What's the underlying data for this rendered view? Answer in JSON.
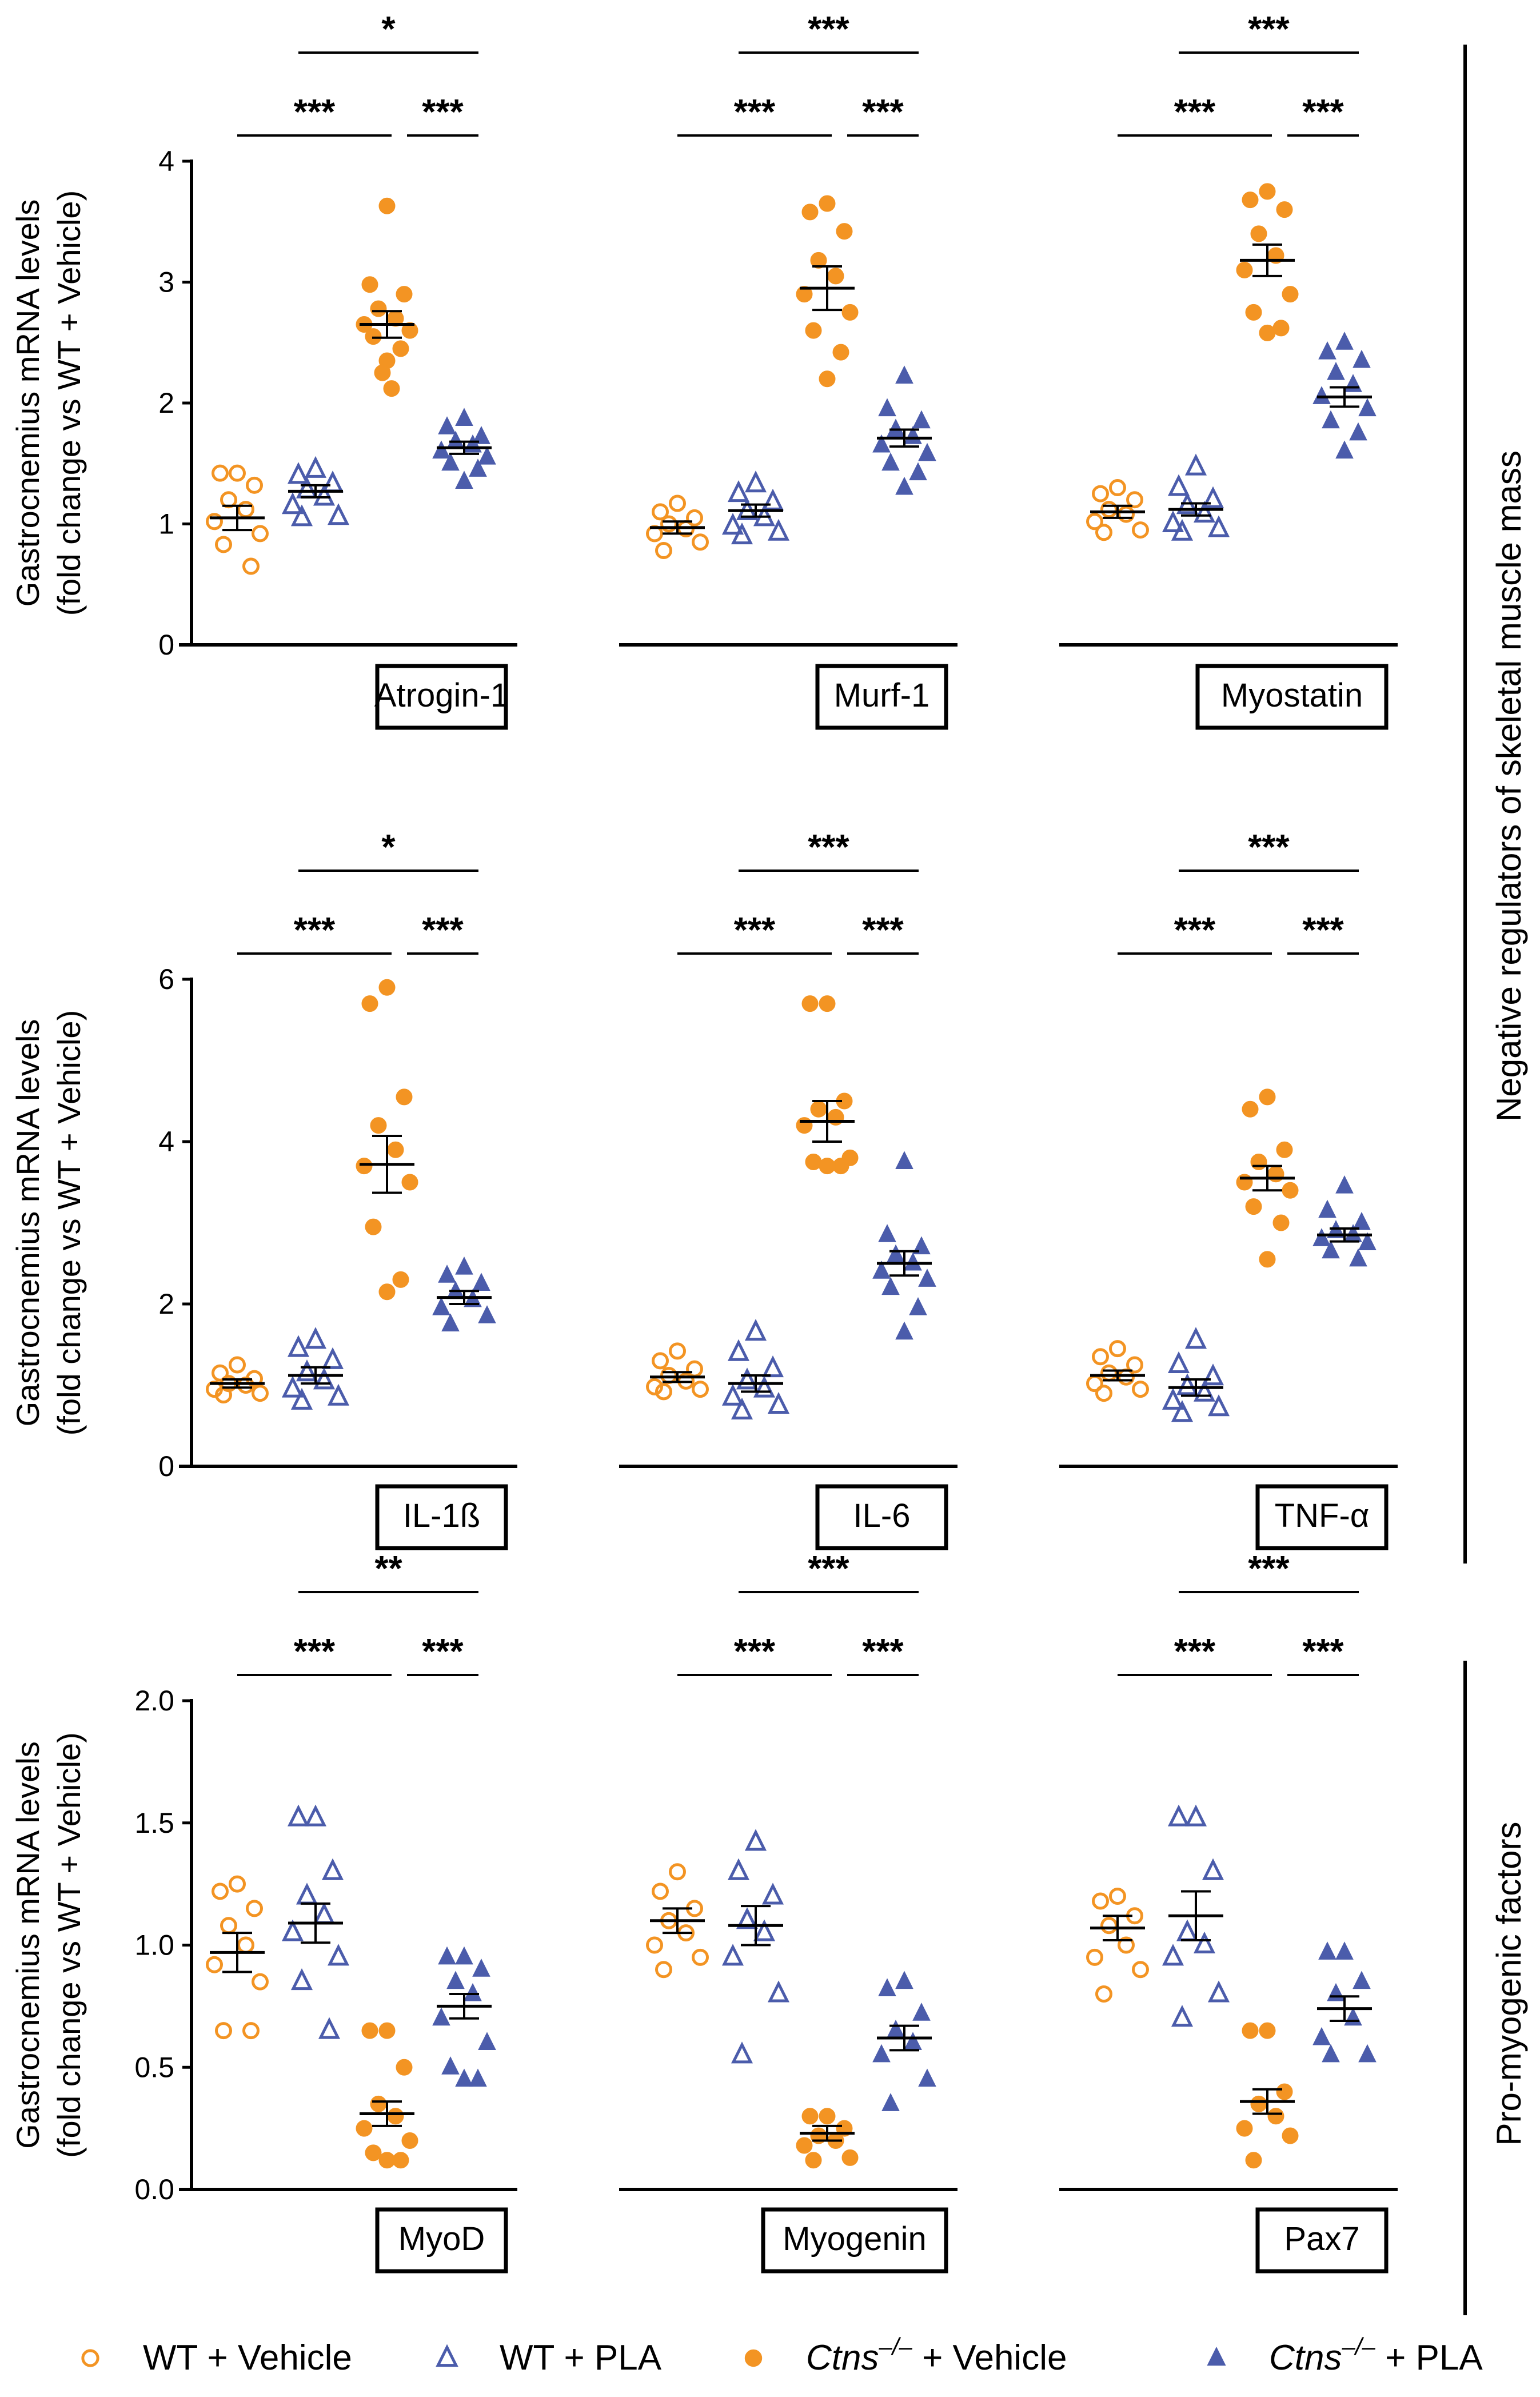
{
  "colors": {
    "orange": "#F39423",
    "blue": "#4B5CAB",
    "black": "#000000"
  },
  "y_axis_title_line1": "Gastrocnemius mRNA levels",
  "y_axis_title_line2": "(fold change vs WT + Vehicle)",
  "side_labels": [
    "Negative regulators of skeletal muscle mass",
    "Pro-myogenic factors"
  ],
  "legend": [
    {
      "prefix": "",
      "italic": "",
      "label": "WT + Vehicle",
      "marker": "open-circle",
      "color": "#F39423"
    },
    {
      "prefix": "",
      "italic": "",
      "label": "WT + PLA",
      "marker": "open-triangle",
      "color": "#4B5CAB"
    },
    {
      "prefix": "",
      "italic": "Ctns",
      "sup": "–/–",
      "label": " + Vehicle",
      "marker": "filled-circle",
      "color": "#F39423"
    },
    {
      "prefix": "",
      "italic": "Ctns",
      "sup": "–/–",
      "label": " + PLA",
      "marker": "filled-triangle",
      "color": "#4B5CAB"
    }
  ],
  "chart_data": [
    {
      "type": "scatter",
      "title": "Atrogin-1",
      "row": 0,
      "ylim": [
        0,
        4
      ],
      "yticks": [
        0,
        1,
        2,
        3,
        4
      ],
      "ytick_labels": [
        "0",
        "1",
        "2",
        "3",
        "4"
      ],
      "groups": [
        {
          "name": "WT + Vehicle",
          "mean": 1.05,
          "sem": 0.1,
          "values": [
            1.42,
            1.42,
            1.32,
            1.2,
            1.12,
            1.02,
            0.92,
            0.83,
            0.65
          ]
        },
        {
          "name": "WT + PLA",
          "mean": 1.27,
          "sem": 0.05,
          "values": [
            1.45,
            1.4,
            1.33,
            1.28,
            1.22,
            1.15,
            1.06,
            1.05
          ]
        },
        {
          "name": "Ctns–/– + Vehicle",
          "mean": 2.65,
          "sem": 0.11,
          "values": [
            3.63,
            2.98,
            2.9,
            2.78,
            2.7,
            2.65,
            2.6,
            2.55,
            2.45,
            2.35,
            2.25,
            2.12
          ]
        },
        {
          "name": "Ctns–/– + PLA",
          "mean": 1.63,
          "sem": 0.05,
          "values": [
            1.87,
            1.8,
            1.72,
            1.68,
            1.65,
            1.6,
            1.55,
            1.5,
            1.45,
            1.35
          ]
        }
      ],
      "significance": [
        {
          "from": 0,
          "to": 2,
          "label": "***",
          "level": 0
        },
        {
          "from": 2,
          "to": 3,
          "label": "***",
          "level": 0
        },
        {
          "from": 1,
          "to": 3,
          "label": "*",
          "level": 1
        }
      ]
    },
    {
      "type": "scatter",
      "title": "Murf-1",
      "row": 0,
      "ylim": [
        0,
        4
      ],
      "yticks": [],
      "groups": [
        {
          "name": "WT + Vehicle",
          "mean": 0.97,
          "sem": 0.05,
          "values": [
            1.17,
            1.1,
            1.05,
            1.0,
            0.96,
            0.92,
            0.85,
            0.78
          ]
        },
        {
          "name": "WT + PLA",
          "mean": 1.11,
          "sem": 0.05,
          "values": [
            1.33,
            1.25,
            1.18,
            1.1,
            1.05,
            0.98,
            0.93,
            0.9
          ]
        },
        {
          "name": "Ctns–/– + Vehicle",
          "mean": 2.95,
          "sem": 0.18,
          "values": [
            3.65,
            3.58,
            3.42,
            3.18,
            3.05,
            2.9,
            2.75,
            2.6,
            2.42,
            2.2
          ]
        },
        {
          "name": "Ctns–/– + PLA",
          "mean": 1.71,
          "sem": 0.07,
          "values": [
            2.22,
            1.95,
            1.85,
            1.78,
            1.72,
            1.65,
            1.58,
            1.5,
            1.42,
            1.3
          ]
        }
      ],
      "significance": [
        {
          "from": 0,
          "to": 2,
          "label": "***",
          "level": 0
        },
        {
          "from": 2,
          "to": 3,
          "label": "***",
          "level": 0
        },
        {
          "from": 1,
          "to": 3,
          "label": "***",
          "level": 1
        }
      ]
    },
    {
      "type": "scatter",
      "title": "Myostatin",
      "row": 0,
      "ylim": [
        0,
        4
      ],
      "yticks": [],
      "groups": [
        {
          "name": "WT + Vehicle",
          "mean": 1.1,
          "sem": 0.05,
          "values": [
            1.3,
            1.25,
            1.2,
            1.12,
            1.08,
            1.02,
            0.95,
            0.93
          ]
        },
        {
          "name": "WT + PLA",
          "mean": 1.12,
          "sem": 0.05,
          "values": [
            1.47,
            1.3,
            1.2,
            1.15,
            1.08,
            1.0,
            0.96,
            0.93
          ]
        },
        {
          "name": "Ctns–/– + Vehicle",
          "mean": 3.18,
          "sem": 0.13,
          "values": [
            3.75,
            3.68,
            3.6,
            3.4,
            3.22,
            3.1,
            2.9,
            2.75,
            2.62,
            2.58
          ]
        },
        {
          "name": "Ctns–/– + PLA",
          "mean": 2.05,
          "sem": 0.08,
          "values": [
            2.5,
            2.42,
            2.35,
            2.25,
            2.15,
            2.05,
            1.95,
            1.85,
            1.75,
            1.6
          ]
        }
      ],
      "significance": [
        {
          "from": 0,
          "to": 2,
          "label": "***",
          "level": 0
        },
        {
          "from": 2,
          "to": 3,
          "label": "***",
          "level": 0
        },
        {
          "from": 1,
          "to": 3,
          "label": "***",
          "level": 1
        }
      ]
    },
    {
      "type": "scatter",
      "title": "IL-1ß",
      "row": 1,
      "ylim": [
        0,
        6
      ],
      "yticks": [
        0,
        2,
        4,
        6
      ],
      "ytick_labels": [
        "0",
        "2",
        "4",
        "6"
      ],
      "groups": [
        {
          "name": "WT + Vehicle",
          "mean": 1.02,
          "sem": 0.05,
          "values": [
            1.25,
            1.15,
            1.08,
            1.02,
            1.0,
            0.95,
            0.9,
            0.88
          ]
        },
        {
          "name": "WT + PLA",
          "mean": 1.12,
          "sem": 0.1,
          "values": [
            1.55,
            1.45,
            1.3,
            1.15,
            1.05,
            0.95,
            0.85,
            0.8
          ]
        },
        {
          "name": "Ctns–/– + Vehicle",
          "mean": 3.72,
          "sem": 0.35,
          "values": [
            5.9,
            5.7,
            4.55,
            4.2,
            3.9,
            3.7,
            3.5,
            2.95,
            2.3,
            2.15
          ]
        },
        {
          "name": "Ctns–/– + PLA",
          "mean": 2.08,
          "sem": 0.08,
          "values": [
            2.45,
            2.35,
            2.25,
            2.15,
            2.05,
            1.95,
            1.85,
            1.75
          ]
        }
      ],
      "significance": [
        {
          "from": 0,
          "to": 2,
          "label": "***",
          "level": 0
        },
        {
          "from": 2,
          "to": 3,
          "label": "***",
          "level": 0
        },
        {
          "from": 1,
          "to": 3,
          "label": "*",
          "level": 1
        }
      ]
    },
    {
      "type": "scatter",
      "title": "IL-6",
      "row": 1,
      "ylim": [
        0,
        6
      ],
      "yticks": [],
      "groups": [
        {
          "name": "WT + Vehicle",
          "mean": 1.1,
          "sem": 0.06,
          "values": [
            1.42,
            1.3,
            1.2,
            1.12,
            1.05,
            0.98,
            0.95,
            0.92
          ]
        },
        {
          "name": "WT + PLA",
          "mean": 1.02,
          "sem": 0.1,
          "values": [
            1.65,
            1.4,
            1.2,
            1.05,
            0.95,
            0.85,
            0.75,
            0.68
          ]
        },
        {
          "name": "Ctns–/– + Vehicle",
          "mean": 4.25,
          "sem": 0.25,
          "values": [
            5.7,
            5.7,
            4.5,
            4.4,
            4.3,
            4.2,
            3.8,
            3.75,
            3.7,
            3.7
          ]
        },
        {
          "name": "Ctns–/– + PLA",
          "mean": 2.5,
          "sem": 0.15,
          "values": [
            3.75,
            2.85,
            2.7,
            2.6,
            2.5,
            2.4,
            2.3,
            2.2,
            1.95,
            1.65
          ]
        }
      ],
      "significance": [
        {
          "from": 0,
          "to": 2,
          "label": "***",
          "level": 0
        },
        {
          "from": 2,
          "to": 3,
          "label": "***",
          "level": 0
        },
        {
          "from": 1,
          "to": 3,
          "label": "***",
          "level": 1
        }
      ]
    },
    {
      "type": "scatter",
      "title": "TNF-α",
      "row": 1,
      "ylim": [
        0,
        6
      ],
      "yticks": [],
      "groups": [
        {
          "name": "WT + Vehicle",
          "mean": 1.12,
          "sem": 0.06,
          "values": [
            1.45,
            1.35,
            1.25,
            1.15,
            1.1,
            1.02,
            0.95,
            0.9
          ]
        },
        {
          "name": "WT + PLA",
          "mean": 0.97,
          "sem": 0.1,
          "values": [
            1.55,
            1.25,
            1.1,
            0.98,
            0.9,
            0.8,
            0.72,
            0.65
          ]
        },
        {
          "name": "Ctns–/– + Vehicle",
          "mean": 3.55,
          "sem": 0.15,
          "values": [
            4.55,
            4.4,
            3.9,
            3.75,
            3.6,
            3.5,
            3.4,
            3.2,
            3.0,
            2.55
          ]
        },
        {
          "name": "Ctns–/– + PLA",
          "mean": 2.85,
          "sem": 0.08,
          "values": [
            3.45,
            3.15,
            3.0,
            2.9,
            2.85,
            2.8,
            2.75,
            2.65,
            2.55
          ]
        }
      ],
      "significance": [
        {
          "from": 0,
          "to": 2,
          "label": "***",
          "level": 0
        },
        {
          "from": 2,
          "to": 3,
          "label": "***",
          "level": 0
        },
        {
          "from": 1,
          "to": 3,
          "label": "***",
          "level": 1
        }
      ]
    },
    {
      "type": "scatter",
      "title": "MyoD",
      "row": 2,
      "ylim": [
        0,
        2
      ],
      "yticks": [
        0,
        0.5,
        1,
        1.5,
        2
      ],
      "ytick_labels": [
        "0.0",
        "0.5",
        "1.0",
        "1.5",
        "2.0"
      ],
      "groups": [
        {
          "name": "WT + Vehicle",
          "mean": 0.97,
          "sem": 0.08,
          "values": [
            1.25,
            1.22,
            1.15,
            1.08,
            1.0,
            0.92,
            0.85,
            0.65,
            0.65
          ]
        },
        {
          "name": "WT + PLA",
          "mean": 1.09,
          "sem": 0.08,
          "values": [
            1.52,
            1.52,
            1.3,
            1.2,
            1.12,
            1.05,
            0.95,
            0.85,
            0.65
          ]
        },
        {
          "name": "Ctns–/– + Vehicle",
          "mean": 0.31,
          "sem": 0.05,
          "values": [
            0.65,
            0.65,
            0.5,
            0.35,
            0.3,
            0.25,
            0.2,
            0.15,
            0.12,
            0.12
          ]
        },
        {
          "name": "Ctns–/– + PLA",
          "mean": 0.75,
          "sem": 0.05,
          "values": [
            0.95,
            0.95,
            0.9,
            0.85,
            0.8,
            0.7,
            0.6,
            0.5,
            0.45,
            0.45
          ]
        }
      ],
      "significance": [
        {
          "from": 0,
          "to": 2,
          "label": "***",
          "level": 0
        },
        {
          "from": 2,
          "to": 3,
          "label": "***",
          "level": 0
        },
        {
          "from": 1,
          "to": 3,
          "label": "**",
          "level": 1
        }
      ]
    },
    {
      "type": "scatter",
      "title": "Myogenin",
      "row": 2,
      "ylim": [
        0,
        2
      ],
      "yticks": [],
      "groups": [
        {
          "name": "WT + Vehicle",
          "mean": 1.1,
          "sem": 0.05,
          "values": [
            1.3,
            1.22,
            1.15,
            1.1,
            1.05,
            1.0,
            0.95,
            0.9
          ]
        },
        {
          "name": "WT + PLA",
          "mean": 1.08,
          "sem": 0.08,
          "values": [
            1.42,
            1.3,
            1.2,
            1.1,
            1.05,
            0.95,
            0.8,
            0.55
          ]
        },
        {
          "name": "Ctns–/– + Vehicle",
          "mean": 0.23,
          "sem": 0.03,
          "values": [
            0.3,
            0.3,
            0.25,
            0.22,
            0.2,
            0.18,
            0.13,
            0.12
          ]
        },
        {
          "name": "Ctns–/– + PLA",
          "mean": 0.62,
          "sem": 0.05,
          "values": [
            0.85,
            0.82,
            0.72,
            0.65,
            0.6,
            0.55,
            0.45,
            0.35
          ]
        }
      ],
      "significance": [
        {
          "from": 0,
          "to": 2,
          "label": "***",
          "level": 0
        },
        {
          "from": 2,
          "to": 3,
          "label": "***",
          "level": 0
        },
        {
          "from": 1,
          "to": 3,
          "label": "***",
          "level": 1
        }
      ]
    },
    {
      "type": "scatter",
      "title": "Pax7",
      "row": 2,
      "ylim": [
        0,
        2
      ],
      "yticks": [],
      "groups": [
        {
          "name": "WT + Vehicle",
          "mean": 1.07,
          "sem": 0.05,
          "values": [
            1.2,
            1.18,
            1.12,
            1.08,
            1.0,
            0.95,
            0.9,
            0.8
          ]
        },
        {
          "name": "WT + PLA",
          "mean": 1.12,
          "sem": 0.1,
          "values": [
            1.52,
            1.52,
            1.3,
            1.05,
            1.0,
            0.95,
            0.8,
            0.7
          ]
        },
        {
          "name": "Ctns–/– + Vehicle",
          "mean": 0.36,
          "sem": 0.05,
          "values": [
            0.65,
            0.65,
            0.4,
            0.35,
            0.3,
            0.25,
            0.22,
            0.12
          ]
        },
        {
          "name": "Ctns–/– + PLA",
          "mean": 0.74,
          "sem": 0.05,
          "values": [
            0.97,
            0.97,
            0.85,
            0.8,
            0.7,
            0.62,
            0.55,
            0.55
          ]
        }
      ],
      "significance": [
        {
          "from": 0,
          "to": 2,
          "label": "***",
          "level": 0
        },
        {
          "from": 2,
          "to": 3,
          "label": "***",
          "level": 0
        },
        {
          "from": 1,
          "to": 3,
          "label": "***",
          "level": 1
        }
      ]
    }
  ]
}
